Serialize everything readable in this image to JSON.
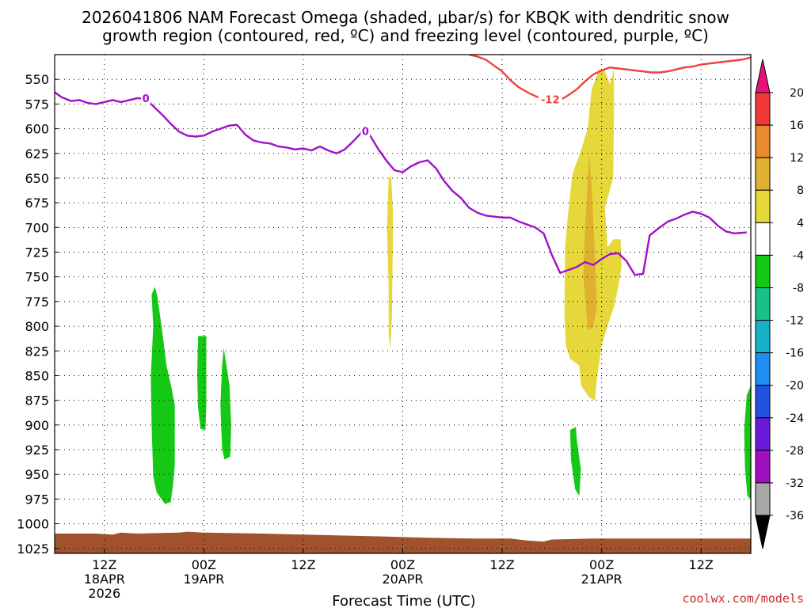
{
  "title_lines": [
    "2026041806 NAM Forecast Omega (shaded, μbar/s) for KBQK with dendritic snow",
    "growth region (contoured, red, ºC) and freezing level (contoured, purple, ºC)"
  ],
  "credit": "coolwx.com/models",
  "chart_data": {
    "type": "time-height cross section",
    "xlabel": "Forecast Time (UTC)",
    "ylabel": "Pressure (mb)",
    "x_range_hours": [
      0,
      84
    ],
    "y_range_mb": [
      525,
      1030
    ],
    "y_ticks": [
      "550",
      "575",
      "600",
      "625",
      "650",
      "675",
      "700",
      "725",
      "750",
      "775",
      "800",
      "825",
      "850",
      "875",
      "900",
      "925",
      "950",
      "975",
      "1000",
      "1025"
    ],
    "x_ticks": [
      {
        "hour": 6,
        "lines": [
          "12Z",
          "18APR",
          "2026"
        ]
      },
      {
        "hour": 18,
        "lines": [
          "00Z",
          "19APR"
        ]
      },
      {
        "hour": 30,
        "lines": [
          "12Z"
        ]
      },
      {
        "hour": 42,
        "lines": [
          "00Z",
          "20APR"
        ]
      },
      {
        "hour": 54,
        "lines": [
          "12Z"
        ]
      },
      {
        "hour": 66,
        "lines": [
          "00Z",
          "21APR"
        ]
      },
      {
        "hour": 78,
        "lines": [
          "12Z"
        ]
      }
    ],
    "colorbar": {
      "labels": [
        "20",
        "16",
        "12",
        "8",
        "4",
        "-4",
        "-8",
        "-12",
        "-16",
        "-20",
        "-24",
        "-28",
        "-32",
        "-36"
      ],
      "top_arrow_color": "#e8127a",
      "bottom_arrow_color": "#000000",
      "bins": [
        {
          "range": [
            16,
            20
          ],
          "color": "#f03a3a"
        },
        {
          "range": [
            12,
            16
          ],
          "color": "#ea8a2e"
        },
        {
          "range": [
            8,
            12
          ],
          "color": "#e0b030"
        },
        {
          "range": [
            4,
            8
          ],
          "color": "#e6d83a"
        },
        {
          "range": [
            -4,
            4
          ],
          "color": "#ffffff"
        },
        {
          "range": [
            -8,
            -4
          ],
          "color": "#16c816"
        },
        {
          "range": [
            -12,
            -8
          ],
          "color": "#18c08a"
        },
        {
          "range": [
            -16,
            -12
          ],
          "color": "#16b0c8"
        },
        {
          "range": [
            -20,
            -16
          ],
          "color": "#1e8ef0"
        },
        {
          "range": [
            -24,
            -20
          ],
          "color": "#2452e0"
        },
        {
          "range": [
            -28,
            -24
          ],
          "color": "#6a1ad8"
        },
        {
          "range": [
            -32,
            -28
          ],
          "color": "#a010c0"
        },
        {
          "range": [
            -36,
            -32
          ],
          "color": "#a8a8a8"
        }
      ]
    },
    "freezing_level": {
      "label": "0",
      "color": "#a010c8",
      "points": [
        [
          0,
          563
        ],
        [
          0.8,
          568
        ],
        [
          2,
          572
        ],
        [
          3,
          571
        ],
        [
          4,
          574
        ],
        [
          5,
          575
        ],
        [
          6,
          573
        ],
        [
          7,
          571
        ],
        [
          8,
          573
        ],
        [
          9,
          571
        ],
        [
          10,
          569
        ],
        [
          11,
          570
        ],
        [
          12,
          578
        ],
        [
          13,
          586
        ],
        [
          14,
          595
        ],
        [
          15,
          603
        ],
        [
          16,
          607
        ],
        [
          17,
          608
        ],
        [
          18,
          607
        ],
        [
          19,
          603
        ],
        [
          20,
          600
        ],
        [
          21,
          597
        ],
        [
          22,
          596
        ],
        [
          23,
          606
        ],
        [
          24,
          612
        ],
        [
          25,
          614
        ],
        [
          26,
          615
        ],
        [
          27,
          618
        ],
        [
          28,
          619
        ],
        [
          29,
          621
        ],
        [
          30,
          620
        ],
        [
          31,
          622
        ],
        [
          32,
          618
        ],
        [
          33,
          622
        ],
        [
          34,
          625
        ],
        [
          35,
          621
        ],
        [
          36,
          613
        ],
        [
          37,
          604
        ],
        [
          38,
          606
        ],
        [
          39,
          620
        ],
        [
          40,
          632
        ],
        [
          41,
          642
        ],
        [
          42,
          644
        ],
        [
          43,
          638
        ],
        [
          44,
          634
        ],
        [
          45,
          632
        ],
        [
          46,
          640
        ],
        [
          47,
          653
        ],
        [
          48,
          663
        ],
        [
          49,
          670
        ],
        [
          50,
          680
        ],
        [
          51,
          685
        ],
        [
          52,
          688
        ],
        [
          53,
          689
        ],
        [
          54,
          690
        ],
        [
          55,
          690
        ],
        [
          56,
          694
        ],
        [
          57,
          697
        ],
        [
          58,
          700
        ],
        [
          59,
          706
        ],
        [
          60,
          728
        ],
        [
          61,
          746
        ],
        [
          62,
          743
        ],
        [
          63,
          740
        ],
        [
          64,
          735
        ],
        [
          65,
          738
        ],
        [
          66,
          732
        ],
        [
          67,
          727
        ],
        [
          68,
          726
        ],
        [
          69,
          734
        ],
        [
          70,
          748
        ],
        [
          71,
          747
        ],
        [
          71.8,
          708
        ],
        [
          73,
          700
        ],
        [
          74,
          694
        ],
        [
          75,
          691
        ],
        [
          76,
          687
        ],
        [
          77,
          684
        ],
        [
          78,
          686
        ],
        [
          79,
          690
        ],
        [
          80,
          698
        ],
        [
          81,
          704
        ],
        [
          82,
          706
        ],
        [
          83.5,
          705
        ]
      ]
    },
    "dendritic_growth_contour": {
      "label": "-12",
      "color": "#f04040",
      "points": [
        [
          50,
          525
        ],
        [
          51,
          527
        ],
        [
          52,
          530
        ],
        [
          53,
          536
        ],
        [
          54,
          542
        ],
        [
          55,
          551
        ],
        [
          56,
          558
        ],
        [
          57,
          563
        ],
        [
          58,
          567
        ],
        [
          59,
          570
        ],
        [
          60,
          571
        ],
        [
          61,
          571
        ],
        [
          62,
          566
        ],
        [
          63,
          560
        ],
        [
          64,
          552
        ],
        [
          65,
          545
        ],
        [
          66,
          541
        ],
        [
          67,
          538
        ],
        [
          68,
          539
        ],
        [
          69,
          540
        ],
        [
          70,
          541
        ],
        [
          71,
          542
        ],
        [
          72,
          543
        ],
        [
          73,
          543
        ],
        [
          74,
          542
        ],
        [
          75,
          540
        ],
        [
          76,
          538
        ],
        [
          77,
          537
        ],
        [
          78,
          535
        ],
        [
          79,
          534
        ],
        [
          80,
          533
        ],
        [
          81,
          532
        ],
        [
          82,
          531
        ],
        [
          83,
          530
        ],
        [
          84,
          528
        ]
      ]
    },
    "omega_regions": [
      {
        "name": "descent-18apr-a",
        "color": "#16c816",
        "points": [
          [
            11.7,
            768
          ],
          [
            11.9,
            800
          ],
          [
            11.6,
            850
          ],
          [
            11.7,
            900
          ],
          [
            11.9,
            952
          ],
          [
            12.3,
            968
          ],
          [
            13.3,
            980
          ],
          [
            14.0,
            978
          ],
          [
            14.3,
            960
          ],
          [
            14.5,
            940
          ],
          [
            14.5,
            880
          ],
          [
            14.1,
            862
          ],
          [
            13.5,
            840
          ],
          [
            12.9,
            800
          ],
          [
            12.4,
            770
          ],
          [
            12.1,
            760
          ]
        ]
      },
      {
        "name": "descent-19apr-a",
        "color": "#16c816",
        "points": [
          [
            17.3,
            810
          ],
          [
            17.2,
            850
          ],
          [
            17.3,
            882
          ],
          [
            17.6,
            904
          ],
          [
            18.2,
            905
          ],
          [
            18.3,
            880
          ],
          [
            18.3,
            810
          ]
        ]
      },
      {
        "name": "descent-19apr-b",
        "color": "#16c816",
        "points": [
          [
            20.2,
            840
          ],
          [
            20.0,
            880
          ],
          [
            20.2,
            924
          ],
          [
            20.5,
            935
          ],
          [
            21.2,
            932
          ],
          [
            21.3,
            900
          ],
          [
            21.1,
            860
          ],
          [
            20.7,
            838
          ],
          [
            20.4,
            822
          ]
        ]
      },
      {
        "name": "ascent-20apr",
        "color": "#e6d83a",
        "points": [
          [
            40.3,
            650
          ],
          [
            40.1,
            700
          ],
          [
            40.3,
            760
          ],
          [
            40.3,
            810
          ],
          [
            40.5,
            822
          ],
          [
            40.7,
            790
          ],
          [
            40.8,
            720
          ],
          [
            40.8,
            680
          ],
          [
            40.6,
            648
          ]
        ]
      },
      {
        "name": "descent-20apr-late",
        "color": "#16c816",
        "points": [
          [
            62.2,
            905
          ],
          [
            62.3,
            935
          ],
          [
            62.8,
            965
          ],
          [
            63.3,
            972
          ],
          [
            63.5,
            945
          ],
          [
            63.0,
            915
          ],
          [
            62.9,
            902
          ]
        ]
      },
      {
        "name": "ascent-21apr-main",
        "color": "#e6d83a",
        "points": [
          [
            65.7,
            540
          ],
          [
            64.8,
            560
          ],
          [
            64.3,
            600
          ],
          [
            63.4,
            625
          ],
          [
            62.5,
            645
          ],
          [
            61.9,
            690
          ],
          [
            61.6,
            720
          ],
          [
            61.5,
            790
          ],
          [
            61.7,
            820
          ],
          [
            62.2,
            833
          ],
          [
            63.3,
            840
          ],
          [
            63.5,
            860
          ],
          [
            64.5,
            872
          ],
          [
            65.2,
            875
          ],
          [
            65.4,
            855
          ],
          [
            66.0,
            820
          ],
          [
            66.7,
            800
          ],
          [
            67.5,
            780
          ],
          [
            68.0,
            760
          ],
          [
            68.4,
            740
          ],
          [
            68.3,
            712
          ],
          [
            67.4,
            712
          ],
          [
            66.7,
            720
          ],
          [
            66.4,
            680
          ],
          [
            67.4,
            650
          ],
          [
            67.5,
            580
          ],
          [
            67.5,
            540
          ],
          [
            67.0,
            555
          ],
          [
            66.3,
            540
          ]
        ]
      },
      {
        "name": "ascent-21apr-core",
        "color": "#e0b030",
        "points": [
          [
            64.5,
            625
          ],
          [
            64.0,
            700
          ],
          [
            63.8,
            750
          ],
          [
            64.2,
            790
          ],
          [
            64.4,
            804
          ],
          [
            65.0,
            800
          ],
          [
            65.4,
            780
          ],
          [
            65.2,
            730
          ],
          [
            64.8,
            660
          ]
        ]
      },
      {
        "name": "descent-21apr-right-edge",
        "color": "#16c816",
        "points": [
          [
            83.5,
            870
          ],
          [
            83.2,
            905
          ],
          [
            83.3,
            945
          ],
          [
            83.6,
            972
          ],
          [
            84,
            975
          ],
          [
            84,
            860
          ]
        ]
      }
    ],
    "surface_ground": {
      "color": "#a0522d",
      "top_points": [
        [
          0,
          1010
        ],
        [
          5,
          1010
        ],
        [
          7,
          1011
        ],
        [
          8,
          1009
        ],
        [
          10,
          1010
        ],
        [
          15,
          1009
        ],
        [
          16,
          1008
        ],
        [
          18,
          1009
        ],
        [
          25,
          1010
        ],
        [
          30,
          1011
        ],
        [
          35,
          1012
        ],
        [
          40,
          1013
        ],
        [
          44,
          1014
        ],
        [
          50,
          1015
        ],
        [
          55,
          1015
        ],
        [
          57,
          1017
        ],
        [
          59,
          1018
        ],
        [
          60,
          1016
        ],
        [
          65,
          1015
        ],
        [
          70,
          1015
        ],
        [
          75,
          1015
        ],
        [
          80,
          1015
        ],
        [
          84,
          1015
        ]
      ]
    }
  }
}
